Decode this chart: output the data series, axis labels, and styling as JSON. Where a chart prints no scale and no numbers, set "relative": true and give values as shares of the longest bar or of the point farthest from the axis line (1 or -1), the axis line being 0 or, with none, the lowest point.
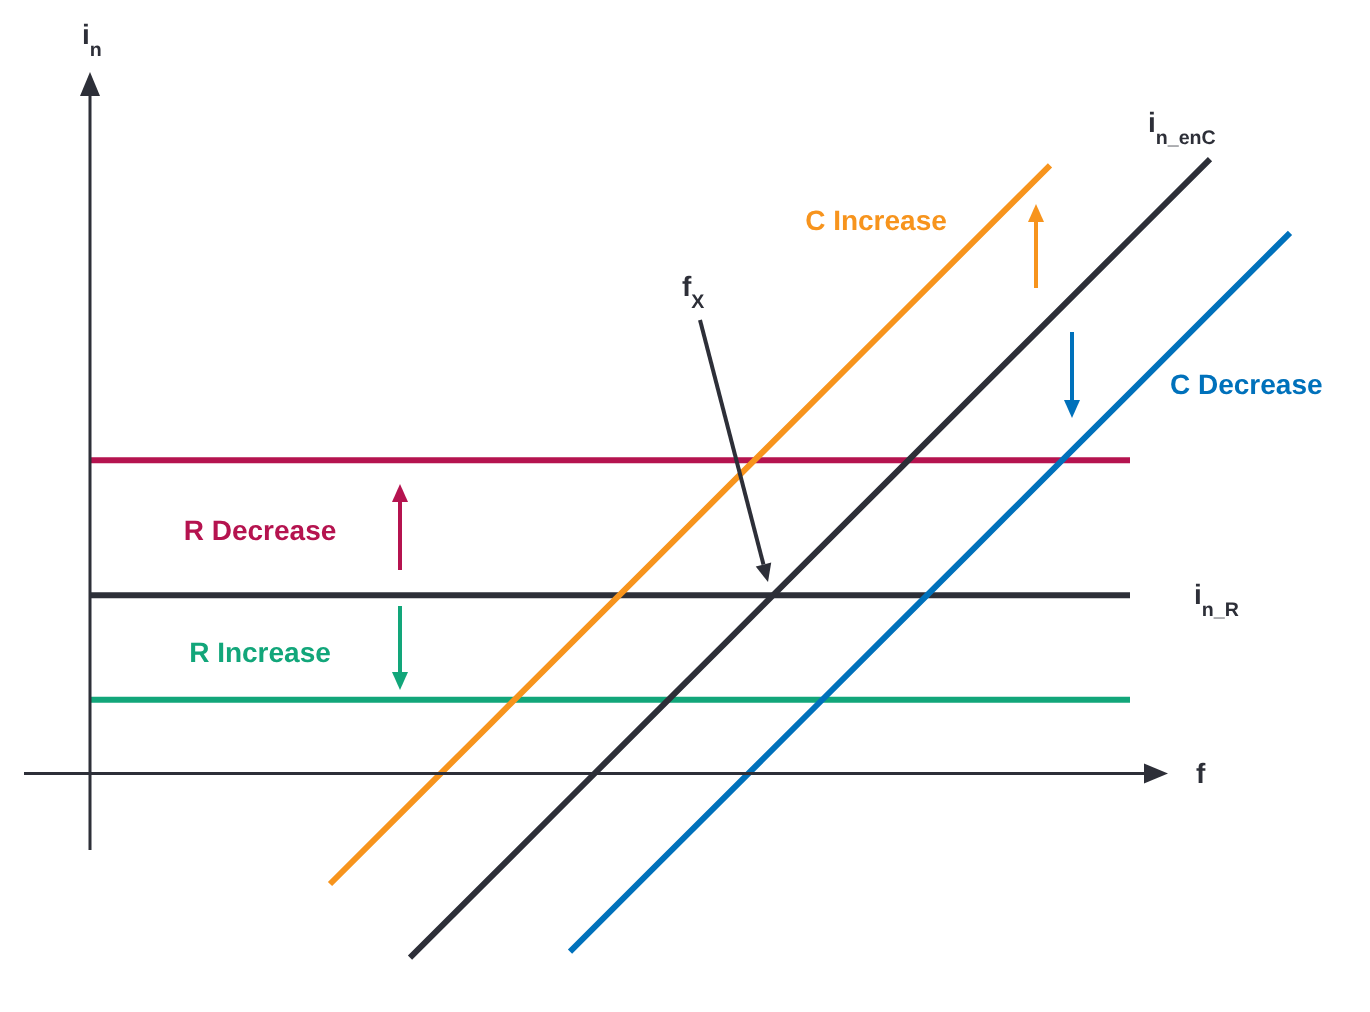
{
  "chart_data": {
    "type": "line",
    "relative": true,
    "xlabel": "f",
    "ylabel": "i$_{n}$",
    "annotations": [
      "f$_{X}$"
    ],
    "categories": [
      null,
      null,
      null,
      null,
      null,
      null,
      null,
      null,
      null,
      null,
      null,
      null,
      null,
      null,
      null,
      null
    ],
    "series": [
      {
        "name": "R Decrease",
        "color": "#b5134f",
        "values": [
          0.51,
          0.51,
          0.51,
          0.51,
          0.51,
          0.51,
          0.51,
          0.51,
          0.51,
          0.51,
          0.51,
          0.51,
          0.51,
          0.51,
          null,
          null
        ]
      },
      {
        "name": "i$_{n_R}$",
        "color": "#2d2f38",
        "values": [
          0.29,
          0.29,
          0.29,
          0.29,
          0.29,
          0.29,
          0.29,
          0.29,
          0.29,
          0.29,
          0.29,
          0.29,
          0.29,
          0.29,
          null,
          null
        ]
      },
      {
        "name": "R Increase",
        "color": "#12a67a",
        "values": [
          0.12,
          0.12,
          0.12,
          0.12,
          0.12,
          0.12,
          0.12,
          0.12,
          0.12,
          0.12,
          0.12,
          0.12,
          0.12,
          0.12,
          null,
          null
        ]
      },
      {
        "name": "C Increase",
        "color": "#f7941d",
        "values": [
          null,
          null,
          null,
          -0.18,
          -0.05,
          0.08,
          0.21,
          0.34,
          0.47,
          0.6,
          0.73,
          0.86,
          0.99,
          null,
          null,
          null
        ]
      },
      {
        "name": "i$_{n_enC}$",
        "color": "#2d2f38",
        "values": [
          null,
          null,
          null,
          null,
          -0.3,
          -0.17,
          -0.04,
          0.09,
          0.22,
          0.35,
          0.48,
          0.61,
          0.74,
          0.87,
          1.0,
          null
        ]
      },
      {
        "name": "C Decrease",
        "color": "#0071bb",
        "values": [
          null,
          null,
          null,
          null,
          null,
          null,
          -0.29,
          -0.16,
          -0.03,
          0.1,
          0.23,
          0.36,
          0.49,
          0.62,
          0.75,
          0.88
        ]
      }
    ]
  }
}
